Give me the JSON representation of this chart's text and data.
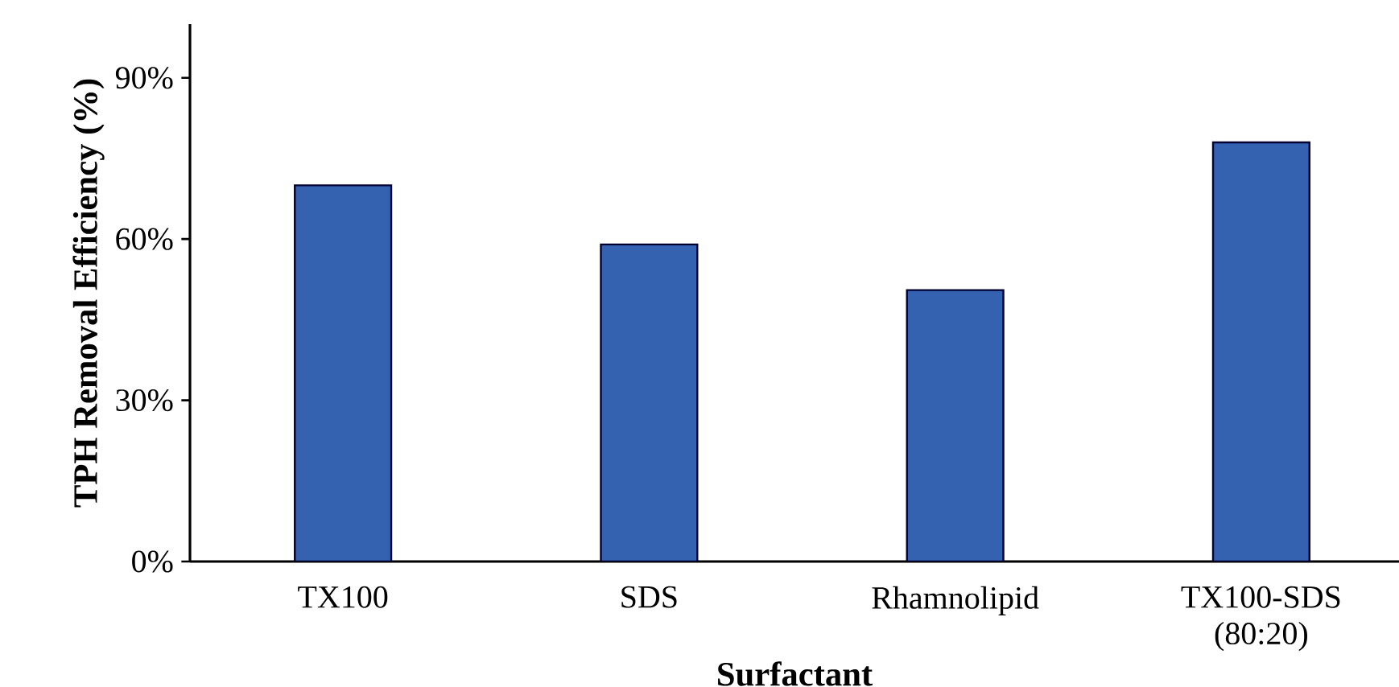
{
  "chart_data": {
    "type": "bar",
    "xlabel": "Surfactant",
    "ylabel": "TPH Removal Efficiency (%)",
    "categories": [
      "TX100",
      "SDS",
      "Rhamnolipid",
      "TX100-SDS (80:20)"
    ],
    "values": [
      70,
      59,
      50.5,
      78
    ],
    "color": "#3462b0",
    "ylim": [
      0,
      100
    ],
    "yticks": [
      {
        "value": 0,
        "label": "0%"
      },
      {
        "value": 30,
        "label": "30%"
      },
      {
        "value": 60,
        "label": "60%"
      },
      {
        "value": 90,
        "label": "90%"
      }
    ],
    "grid": false
  }
}
